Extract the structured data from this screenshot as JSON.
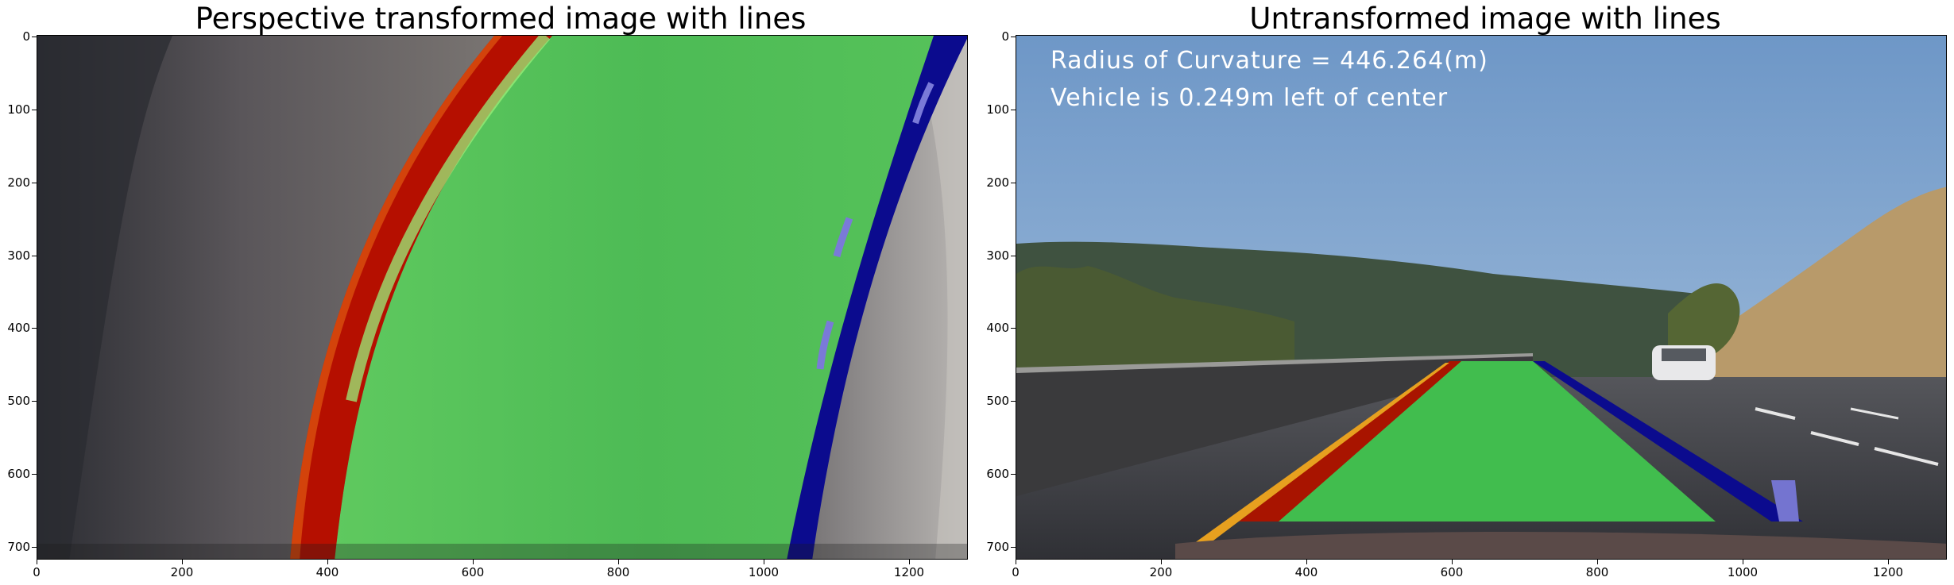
{
  "left_panel": {
    "title": "Perspective transformed image with lines",
    "x_ticks": [
      "0",
      "200",
      "400",
      "600",
      "800",
      "1000",
      "1200"
    ],
    "y_ticks": [
      "0",
      "100",
      "200",
      "300",
      "400",
      "500",
      "600",
      "700"
    ]
  },
  "right_panel": {
    "title": "Untransformed image with lines",
    "x_ticks": [
      "0",
      "200",
      "400",
      "600",
      "800",
      "1000",
      "1200"
    ],
    "y_ticks": [
      "0",
      "100",
      "200",
      "300",
      "400",
      "500",
      "600",
      "700"
    ],
    "overlay": {
      "line1": "Radius of Curvature = 446.264(m)",
      "line2": "Vehicle is 0.249m left of center"
    }
  },
  "colors": {
    "lane_fill": "#4cc04c",
    "left_line": "#c00000",
    "right_line": "#0a0a90",
    "sky": "#7ea6cf",
    "road": "#3a3b40"
  }
}
